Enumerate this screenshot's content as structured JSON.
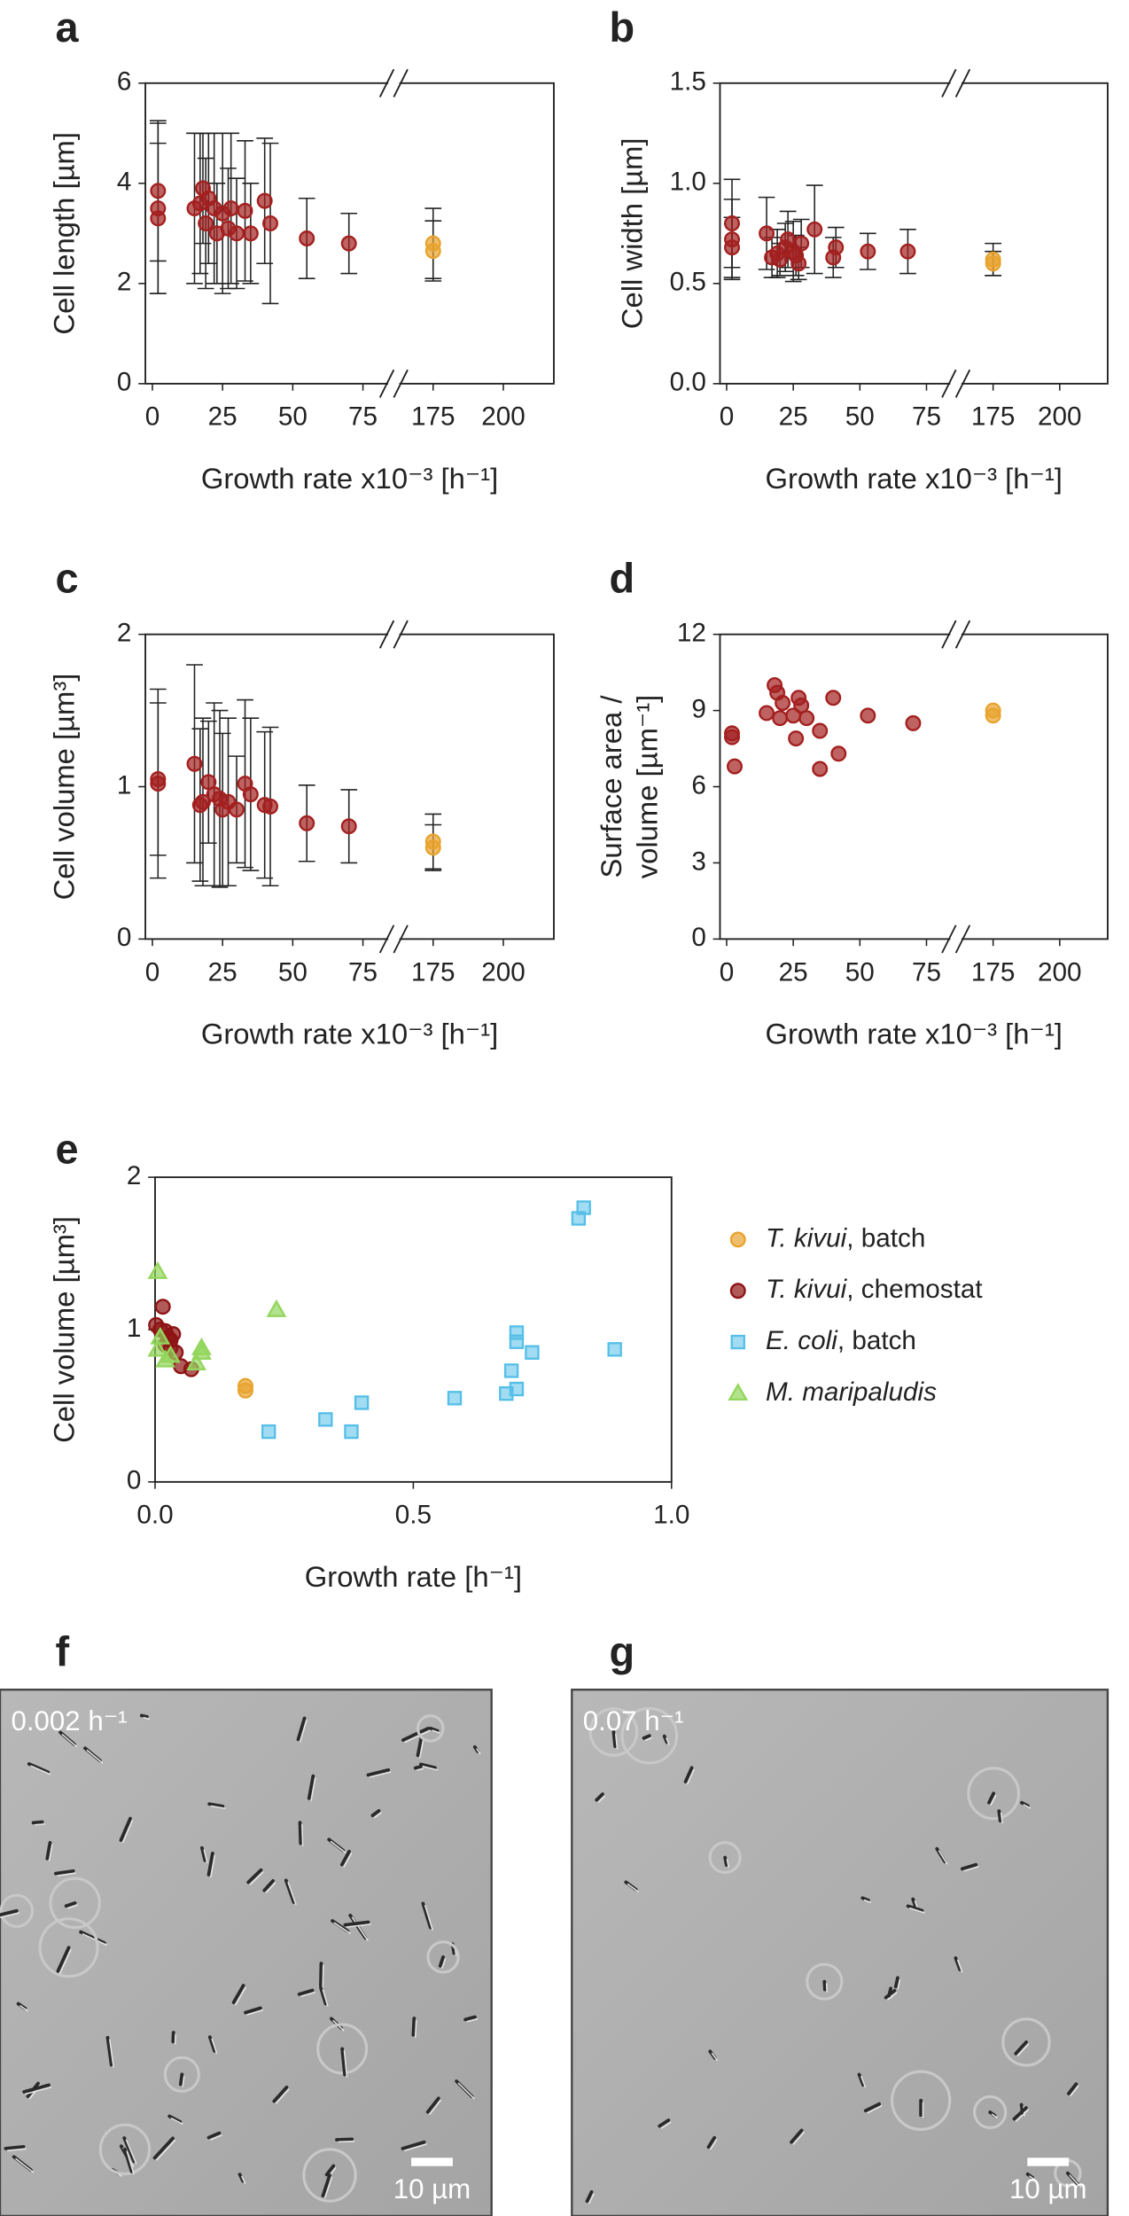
{
  "chart_data": [
    {
      "type": "scatter",
      "panel": "a",
      "x_label": "Growth rate x10⁻³ [h⁻¹]",
      "y_label": "Cell length [µm]",
      "xlim": [
        -2.5,
        218
      ],
      "x_break": [
        85,
        160
      ],
      "xticks": [
        0,
        25,
        50,
        75,
        175,
        200
      ],
      "ylim": [
        0,
        6
      ],
      "yticks": [
        0,
        2,
        4,
        6
      ],
      "series": [
        {
          "color": "#a3201f",
          "x": [
            2,
            2,
            2,
            15,
            17,
            18,
            19,
            20,
            22,
            23,
            25,
            27,
            28,
            30,
            33,
            35,
            40,
            42,
            55,
            70
          ],
          "values": [
            3.85,
            3.5,
            3.3,
            3.5,
            3.6,
            3.9,
            3.2,
            3.7,
            3.5,
            3.0,
            3.4,
            3.1,
            3.5,
            3.0,
            3.45,
            3.0,
            3.65,
            3.2,
            2.9,
            2.8
          ],
          "errors": [
            1.4,
            1.7,
            1.5,
            1.5,
            1.4,
            1.1,
            1.3,
            1.3,
            1.5,
            1.0,
            1.6,
            1.2,
            1.5,
            1.1,
            1.4,
            1.0,
            1.25,
            1.6,
            0.8,
            0.6
          ]
        },
        {
          "color": "#e8a32e",
          "x": [
            175,
            175
          ],
          "values": [
            2.8,
            2.65
          ],
          "errors": [
            0.7,
            0.6
          ]
        }
      ]
    },
    {
      "type": "scatter",
      "panel": "b",
      "x_label": "Growth rate x10⁻³ [h⁻¹]",
      "y_label": "Cell width [µm]",
      "xlim": [
        -2.5,
        218
      ],
      "x_break": [
        85,
        160
      ],
      "xticks": [
        0,
        25,
        50,
        75,
        175,
        200
      ],
      "ylim": [
        0,
        1.5
      ],
      "yticks": [
        {
          "value": 0,
          "label": "0.0"
        },
        0.5,
        {
          "value": 1,
          "label": "1.0"
        },
        1.5
      ],
      "series": [
        {
          "color": "#a3201f",
          "x": [
            2,
            2,
            2,
            15,
            17,
            19,
            20,
            22,
            23,
            25,
            26,
            27,
            28,
            33,
            40,
            41,
            53,
            68
          ],
          "values": [
            0.8,
            0.72,
            0.68,
            0.75,
            0.63,
            0.65,
            0.62,
            0.68,
            0.72,
            0.66,
            0.64,
            0.6,
            0.7,
            0.77,
            0.63,
            0.68,
            0.66,
            0.66
          ],
          "errors": [
            0.22,
            0.2,
            0.15,
            0.18,
            0.1,
            0.12,
            0.08,
            0.12,
            0.14,
            0.15,
            0.1,
            0.08,
            0.12,
            0.22,
            0.1,
            0.1,
            0.09,
            0.11
          ]
        },
        {
          "color": "#e8a32e",
          "x": [
            175,
            175
          ],
          "values": [
            0.62,
            0.6
          ],
          "errors": [
            0.08,
            0.06
          ]
        }
      ]
    },
    {
      "type": "scatter",
      "panel": "c",
      "x_label": "Growth rate x10⁻³ [h⁻¹]",
      "y_label": "Cell volume [µm³]",
      "xlim": [
        -2.5,
        218
      ],
      "x_break": [
        85,
        160
      ],
      "xticks": [
        0,
        25,
        50,
        75,
        175,
        200
      ],
      "ylim": [
        0,
        2
      ],
      "yticks": [
        0,
        1,
        2
      ],
      "series": [
        {
          "color": "#a3201f",
          "x": [
            2,
            2,
            15,
            17,
            18,
            20,
            22,
            24,
            25,
            27,
            30,
            33,
            35,
            40,
            42,
            55,
            70
          ],
          "values": [
            1.05,
            1.02,
            1.15,
            0.88,
            0.9,
            1.03,
            0.95,
            0.92,
            0.85,
            0.9,
            0.85,
            1.02,
            0.95,
            0.88,
            0.87,
            0.76,
            0.74
          ],
          "errors": [
            0.5,
            0.62,
            0.65,
            0.5,
            0.55,
            0.4,
            0.6,
            0.58,
            0.5,
            0.55,
            0.35,
            0.55,
            0.5,
            0.48,
            0.52,
            0.25,
            0.24
          ]
        },
        {
          "color": "#e8a32e",
          "x": [
            175,
            175
          ],
          "values": [
            0.64,
            0.6
          ],
          "errors": [
            0.18,
            0.15
          ]
        }
      ]
    },
    {
      "type": "scatter",
      "panel": "d",
      "x_label": "Growth rate x10⁻³ [h⁻¹]",
      "y_label": [
        "Surface area /",
        "volume [µm⁻¹]"
      ],
      "xlim": [
        -2.5,
        218
      ],
      "x_break": [
        85,
        160
      ],
      "xticks": [
        0,
        25,
        50,
        75,
        175,
        200
      ],
      "ylim": [
        0,
        12
      ],
      "yticks": [
        0,
        3,
        6,
        9,
        12
      ],
      "series": [
        {
          "color": "#a3201f",
          "x": [
            2,
            2,
            3,
            15,
            18,
            19,
            20,
            21,
            25,
            26,
            27,
            28,
            30,
            35,
            35,
            40,
            42,
            53,
            70
          ],
          "values": [
            8.1,
            7.95,
            6.8,
            8.9,
            10,
            9.7,
            8.7,
            9.3,
            8.8,
            7.9,
            9.5,
            9.2,
            8.7,
            8.2,
            6.7,
            9.5,
            7.3,
            8.8,
            8.5
          ]
        },
        {
          "color": "#e8a32e",
          "x": [
            175,
            175
          ],
          "values": [
            9.0,
            8.8
          ]
        }
      ]
    },
    {
      "type": "scatter",
      "panel": "e",
      "x_label": "Growth rate [h⁻¹]",
      "y_label": "Cell volume [µm³]",
      "xlim": [
        0,
        1
      ],
      "xticks": [
        {
          "value": 0,
          "label": "0.0"
        },
        0.5,
        {
          "value": 1,
          "label": "1.0"
        }
      ],
      "ylim": [
        0,
        2
      ],
      "yticks": [
        0,
        1,
        2
      ],
      "series": [
        {
          "name": "T. kivui, batch",
          "marker": "circle",
          "color": "#e8a32e",
          "x": [
            0.175,
            0.175
          ],
          "values": [
            0.63,
            0.6
          ]
        },
        {
          "name": "T. kivui, chemostat",
          "marker": "circle",
          "color": "#8e1414",
          "x": [
            0.002,
            0.01,
            0.015,
            0.02,
            0.025,
            0.03,
            0.035,
            0.04,
            0.05,
            0.07,
            0.02,
            0.03
          ],
          "values": [
            1.03,
            1.0,
            1.15,
            0.9,
            0.95,
            0.88,
            0.97,
            0.85,
            0.76,
            0.74,
            0.99,
            0.93
          ]
        },
        {
          "name": "E. coli, batch",
          "marker": "square",
          "color": "#56bfe8",
          "x": [
            0.22,
            0.33,
            0.38,
            0.4,
            0.58,
            0.68,
            0.69,
            0.7,
            0.7,
            0.7,
            0.73,
            0.82,
            0.83,
            0.89
          ],
          "values": [
            0.33,
            0.41,
            0.33,
            0.52,
            0.55,
            0.58,
            0.73,
            0.61,
            0.92,
            0.98,
            0.85,
            1.73,
            1.8,
            0.87
          ]
        },
        {
          "name": "M. maripaludis",
          "marker": "triangle",
          "color": "#93d65c",
          "x": [
            0.005,
            0.005,
            0.01,
            0.02,
            0.03,
            0.08,
            0.09,
            0.09,
            0.235
          ],
          "values": [
            1.38,
            0.87,
            0.95,
            0.8,
            0.83,
            0.78,
            0.85,
            0.88,
            1.13
          ]
        }
      ]
    }
  ],
  "images": [
    {
      "panel": "f",
      "label": "0.002 h⁻¹",
      "scale_bar": "10 µm"
    },
    {
      "panel": "g",
      "label": "0.07 h⁻¹",
      "scale_bar": "10 µm"
    }
  ]
}
